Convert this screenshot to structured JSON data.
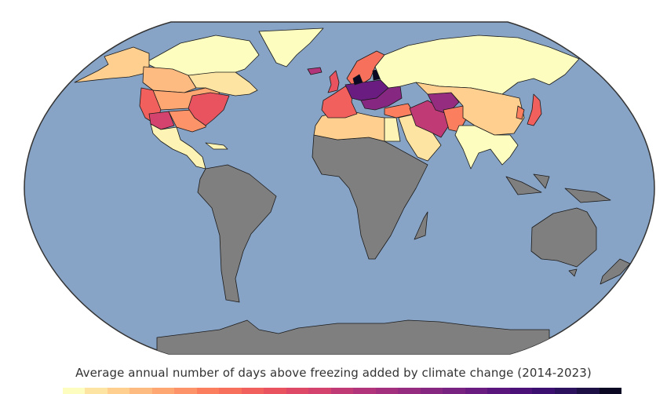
{
  "title": "Average annual number of days above freezing added by climate change (2014-2023)",
  "colors": {
    "ocean": "#87a3c5",
    "no_data": "#7f7f7f",
    "border": "#1a1a1a",
    "background": "#ffffff"
  },
  "colorbar": [
    "#fcfdbf",
    "#fde4a2",
    "#fecf8e",
    "#febb81",
    "#fea772",
    "#fd9368",
    "#fb7e5f",
    "#f7705c",
    "#f1605d",
    "#e8535f",
    "#de4968",
    "#d3436e",
    "#c03a76",
    "#b2357b",
    "#a3307e",
    "#952c80",
    "#862781",
    "#782281",
    "#6a1c81",
    "#5b167e",
    "#4c1179",
    "#3b0f70",
    "#2b115e",
    "#1c1044",
    "#0a0822"
  ],
  "regions": [
    {
      "name": "greenland",
      "color": "#fcfdbf"
    },
    {
      "name": "canada-north",
      "color": "#fcfdbf"
    },
    {
      "name": "alaska",
      "color": "#fecf8e"
    },
    {
      "name": "canada-west",
      "color": "#febb81"
    },
    {
      "name": "canada-east",
      "color": "#fde4a2"
    },
    {
      "name": "usa-north",
      "color": "#fea772"
    },
    {
      "name": "usa-west",
      "color": "#f1605d"
    },
    {
      "name": "usa-southwest",
      "color": "#d3436e"
    },
    {
      "name": "usa-east",
      "color": "#e8535f"
    },
    {
      "name": "usa-south",
      "color": "#fd9368"
    },
    {
      "name": "mexico",
      "color": "#fcf3b5"
    },
    {
      "name": "south-america",
      "color": "#7f7f7f"
    },
    {
      "name": "africa",
      "color": "#7f7f7f"
    },
    {
      "name": "north-africa",
      "color": "#fecf8e"
    },
    {
      "name": "egypt",
      "color": "#fcf3b5"
    },
    {
      "name": "arabia",
      "color": "#fde4a2"
    },
    {
      "name": "iceland",
      "color": "#b2357b"
    },
    {
      "name": "scandinavia",
      "color": "#f7705c"
    },
    {
      "name": "uk",
      "color": "#e8535f"
    },
    {
      "name": "western-europe",
      "color": "#f1605d"
    },
    {
      "name": "central-europe",
      "color": "#6a1c81"
    },
    {
      "name": "baltic",
      "color": "#0a0822"
    },
    {
      "name": "eastern-europe",
      "color": "#862781"
    },
    {
      "name": "turkey",
      "color": "#fb7e5f"
    },
    {
      "name": "iran",
      "color": "#c03a76"
    },
    {
      "name": "central-asia",
      "color": "#952c80"
    },
    {
      "name": "afghanistan",
      "color": "#fb7e5f"
    },
    {
      "name": "russia",
      "color": "#fcfdbf"
    },
    {
      "name": "china",
      "color": "#fecf8e"
    },
    {
      "name": "india-se-asia",
      "color": "#fcfdbf"
    },
    {
      "name": "japan",
      "color": "#f1605d"
    },
    {
      "name": "korea",
      "color": "#fb7e5f"
    },
    {
      "name": "indonesia",
      "color": "#7f7f7f"
    },
    {
      "name": "australia",
      "color": "#7f7f7f"
    },
    {
      "name": "new-zealand",
      "color": "#7f7f7f"
    },
    {
      "name": "antarctica",
      "color": "#7f7f7f"
    },
    {
      "name": "madagascar",
      "color": "#7f7f7f"
    }
  ]
}
